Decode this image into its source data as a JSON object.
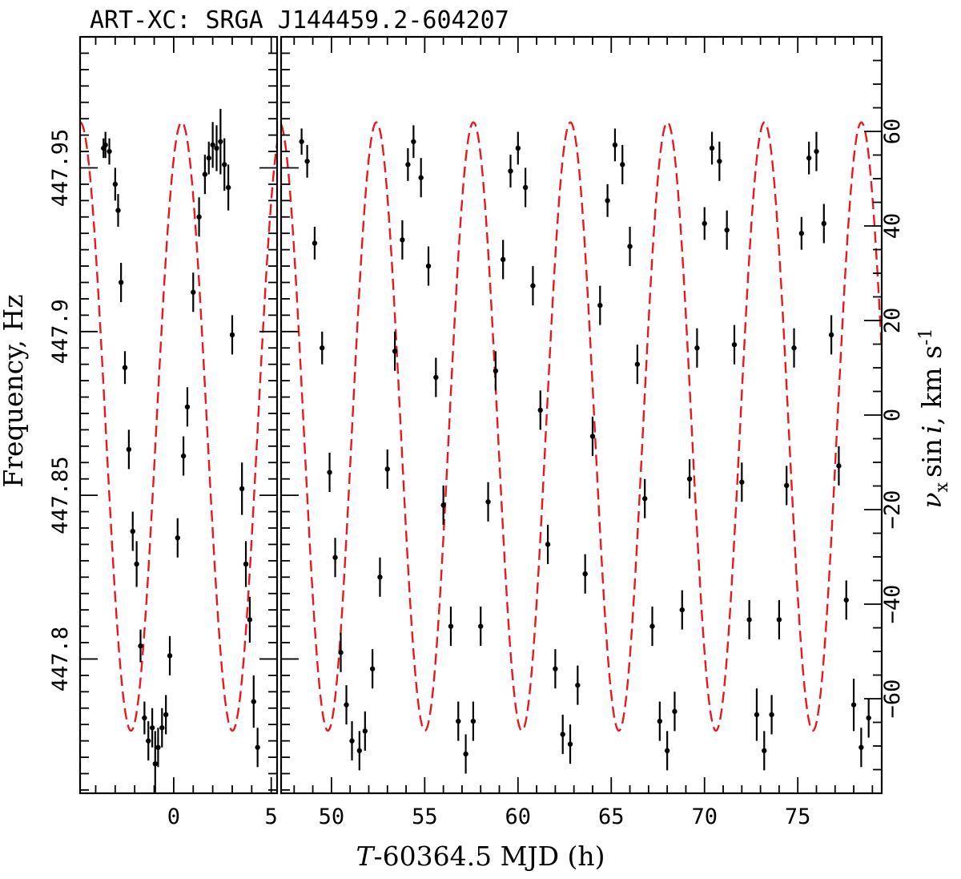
{
  "chart_data": {
    "type": "scatter",
    "title": "ART-XC: SRGA J144459.2-604207",
    "xlabel_italic": "T",
    "xlabel_rest": "-60364.5 MJD (h)",
    "ylabel_left": "Frequency, Hz",
    "ylabel_right": {
      "nu": "ν",
      "sub": "x",
      "sin": "sin",
      "i": "i",
      "unit_pre": ", km s",
      "unit_exp": "-1"
    },
    "panels": [
      {
        "name": "left",
        "xlim": [
          -4.8,
          5.3
        ],
        "xticks": [
          0,
          5
        ],
        "xtick_labels": [
          "0",
          "5"
        ]
      },
      {
        "name": "right",
        "xlim": [
          47.3,
          79.5
        ],
        "xticks": [
          50,
          55,
          60,
          65,
          70,
          75
        ],
        "xtick_labels": [
          "50",
          "55",
          "60",
          "65",
          "70",
          "75"
        ]
      }
    ],
    "ylim_frequency": [
      447.759,
      447.99
    ],
    "yticks_frequency": [
      447.8,
      447.85,
      447.9,
      447.95
    ],
    "ytick_labels_frequency": [
      "447.8",
      "447.85",
      "447.9",
      "447.95"
    ],
    "ylim_velocity": [
      -80,
      80
    ],
    "yticks_velocity": [
      -60,
      -40,
      -20,
      0,
      20,
      40,
      60
    ],
    "ytick_labels_velocity": [
      "−60",
      "−40",
      "−20",
      "0",
      "20",
      "40",
      "60"
    ],
    "model": {
      "name": "orbital fit",
      "style": "dashed",
      "color": "#e8191c",
      "f0": 447.871,
      "amplitude_hz": 0.0929,
      "period_h": 5.2,
      "phase_zero_h": -0.89
    },
    "series": [
      {
        "name": "data",
        "color": "#000000",
        "points": [
          [
            -3.6,
            447.956,
            0.003
          ],
          [
            -3.5,
            447.957,
            0.004
          ],
          [
            -3.3,
            447.955,
            0.004
          ],
          [
            -3.0,
            447.945,
            0.005
          ],
          [
            -2.85,
            447.937,
            0.005
          ],
          [
            -2.7,
            447.915,
            0.006
          ],
          [
            -2.5,
            447.889,
            0.005
          ],
          [
            -2.3,
            447.864,
            0.006
          ],
          [
            -2.1,
            447.839,
            0.006
          ],
          [
            -1.9,
            447.829,
            0.007
          ],
          [
            -1.7,
            447.804,
            0.005
          ],
          [
            -1.5,
            447.782,
            0.005
          ],
          [
            -1.3,
            447.775,
            0.006
          ],
          [
            -1.1,
            447.779,
            0.006
          ],
          [
            -0.95,
            447.768,
            0.01
          ],
          [
            -0.8,
            447.773,
            0.006
          ],
          [
            -0.6,
            447.779,
            0.006
          ],
          [
            -0.4,
            447.783,
            0.006
          ],
          [
            -0.2,
            447.801,
            0.006
          ],
          [
            0.2,
            447.837,
            0.006
          ],
          [
            0.5,
            447.862,
            0.006
          ],
          [
            0.7,
            447.877,
            0.006
          ],
          [
            1.0,
            447.912,
            0.006
          ],
          [
            1.3,
            447.935,
            0.006
          ],
          [
            1.6,
            447.948,
            0.006
          ],
          [
            1.8,
            447.953,
            0.005
          ],
          [
            2.0,
            447.957,
            0.007
          ],
          [
            2.2,
            447.956,
            0.007
          ],
          [
            2.4,
            447.958,
            0.01
          ],
          [
            2.6,
            447.951,
            0.008
          ],
          [
            2.8,
            447.944,
            0.007
          ],
          [
            3.0,
            447.899,
            0.006
          ],
          [
            3.5,
            447.852,
            0.008
          ],
          [
            3.7,
            447.829,
            0.007
          ],
          [
            3.9,
            447.812,
            0.007
          ],
          [
            4.1,
            447.787,
            0.008
          ],
          [
            4.3,
            447.773,
            0.006
          ],
          [
            48.4,
            447.958,
            0.004
          ],
          [
            48.7,
            447.952,
            0.005
          ],
          [
            49.1,
            447.927,
            0.005
          ],
          [
            49.5,
            447.895,
            0.005
          ],
          [
            49.9,
            447.857,
            0.006
          ],
          [
            50.2,
            447.831,
            0.006
          ],
          [
            50.5,
            447.802,
            0.006
          ],
          [
            50.8,
            447.786,
            0.006
          ],
          [
            51.1,
            447.775,
            0.006
          ],
          [
            51.5,
            447.772,
            0.006
          ],
          [
            51.8,
            447.778,
            0.006
          ],
          [
            52.2,
            447.797,
            0.006
          ],
          [
            52.6,
            447.825,
            0.006
          ],
          [
            53.0,
            447.858,
            0.006
          ],
          [
            53.4,
            447.894,
            0.006
          ],
          [
            53.8,
            447.928,
            0.006
          ],
          [
            54.1,
            447.951,
            0.005
          ],
          [
            54.4,
            447.958,
            0.005
          ],
          [
            54.8,
            447.947,
            0.006
          ],
          [
            55.2,
            447.92,
            0.006
          ],
          [
            55.6,
            447.886,
            0.006
          ],
          [
            56.0,
            447.847,
            0.006
          ],
          [
            56.4,
            447.81,
            0.006
          ],
          [
            56.8,
            447.781,
            0.006
          ],
          [
            57.2,
            447.771,
            0.006
          ],
          [
            57.6,
            447.781,
            0.006
          ],
          [
            58.0,
            447.81,
            0.006
          ],
          [
            58.4,
            447.848,
            0.006
          ],
          [
            58.8,
            447.888,
            0.006
          ],
          [
            59.2,
            447.922,
            0.006
          ],
          [
            59.6,
            447.949,
            0.005
          ],
          [
            60.0,
            447.956,
            0.005
          ],
          [
            60.4,
            447.944,
            0.006
          ],
          [
            60.8,
            447.914,
            0.006
          ],
          [
            61.2,
            447.876,
            0.006
          ],
          [
            61.6,
            447.835,
            0.006
          ],
          [
            62.0,
            447.797,
            0.006
          ],
          [
            62.4,
            447.777,
            0.006
          ],
          [
            62.8,
            447.774,
            0.006
          ],
          [
            63.2,
            447.792,
            0.006
          ],
          [
            63.6,
            447.826,
            0.006
          ],
          [
            64.0,
            447.868,
            0.006
          ],
          [
            64.4,
            447.908,
            0.006
          ],
          [
            64.8,
            447.94,
            0.005
          ],
          [
            65.2,
            447.957,
            0.005
          ],
          [
            65.6,
            447.951,
            0.006
          ],
          [
            66.0,
            447.926,
            0.006
          ],
          [
            66.4,
            447.89,
            0.006
          ],
          [
            66.8,
            447.849,
            0.006
          ],
          [
            67.2,
            447.81,
            0.006
          ],
          [
            67.6,
            447.781,
            0.006
          ],
          [
            68.0,
            447.772,
            0.006
          ],
          [
            68.4,
            447.784,
            0.006
          ],
          [
            68.8,
            447.815,
            0.006
          ],
          [
            69.2,
            447.855,
            0.006
          ],
          [
            69.6,
            447.895,
            0.006
          ],
          [
            70.0,
            447.933,
            0.005
          ],
          [
            70.4,
            447.956,
            0.005
          ],
          [
            70.8,
            447.952,
            0.006
          ],
          [
            71.2,
            447.931,
            0.006
          ],
          [
            71.6,
            447.896,
            0.006
          ],
          [
            72.0,
            447.854,
            0.006
          ],
          [
            72.4,
            447.812,
            0.006
          ],
          [
            72.8,
            447.783,
            0.008
          ],
          [
            73.2,
            447.772,
            0.006
          ],
          [
            73.6,
            447.783,
            0.006
          ],
          [
            74.0,
            447.812,
            0.006
          ],
          [
            74.4,
            447.853,
            0.006
          ],
          [
            74.8,
            447.895,
            0.006
          ],
          [
            75.2,
            447.93,
            0.005
          ],
          [
            75.6,
            447.953,
            0.005
          ],
          [
            76.0,
            447.955,
            0.006
          ],
          [
            76.4,
            447.933,
            0.006
          ],
          [
            76.8,
            447.899,
            0.006
          ],
          [
            77.2,
            447.859,
            0.006
          ],
          [
            77.6,
            447.818,
            0.006
          ],
          [
            78.0,
            447.786,
            0.008
          ],
          [
            78.4,
            447.773,
            0.006
          ],
          [
            78.8,
            447.782,
            0.006
          ]
        ]
      }
    ]
  }
}
